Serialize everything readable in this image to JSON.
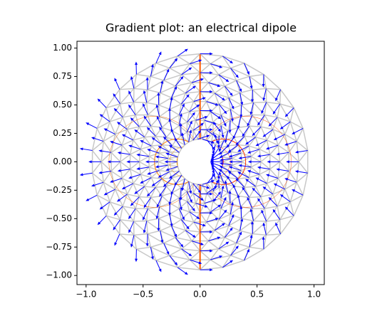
{
  "chart_data": {
    "type": "quiver",
    "title": "Gradient plot: an electrical dipole",
    "xlim": [
      -1.08,
      1.09
    ],
    "ylim": [
      -1.08,
      1.06
    ],
    "xticks": [
      {
        "value": -1,
        "label": "−1.0"
      },
      {
        "value": -0.5,
        "label": "−0.5"
      },
      {
        "value": 0,
        "label": "0.0"
      },
      {
        "value": 0.5,
        "label": "0.5"
      },
      {
        "value": 1,
        "label": "1.0"
      }
    ],
    "yticks": [
      {
        "value": -1,
        "label": "−1.00"
      },
      {
        "value": -0.75,
        "label": "−0.75"
      },
      {
        "value": -0.5,
        "label": "−0.50"
      },
      {
        "value": -0.25,
        "label": "−0.25"
      },
      {
        "value": 0,
        "label": "0.00"
      },
      {
        "value": 0.25,
        "label": "0.25"
      },
      {
        "value": 0.5,
        "label": "0.50"
      },
      {
        "value": 0.75,
        "label": "0.75"
      },
      {
        "value": 1,
        "label": "1.00"
      }
    ],
    "color": "#0000ff",
    "mesh_color": "#c8c8c8"
  }
}
